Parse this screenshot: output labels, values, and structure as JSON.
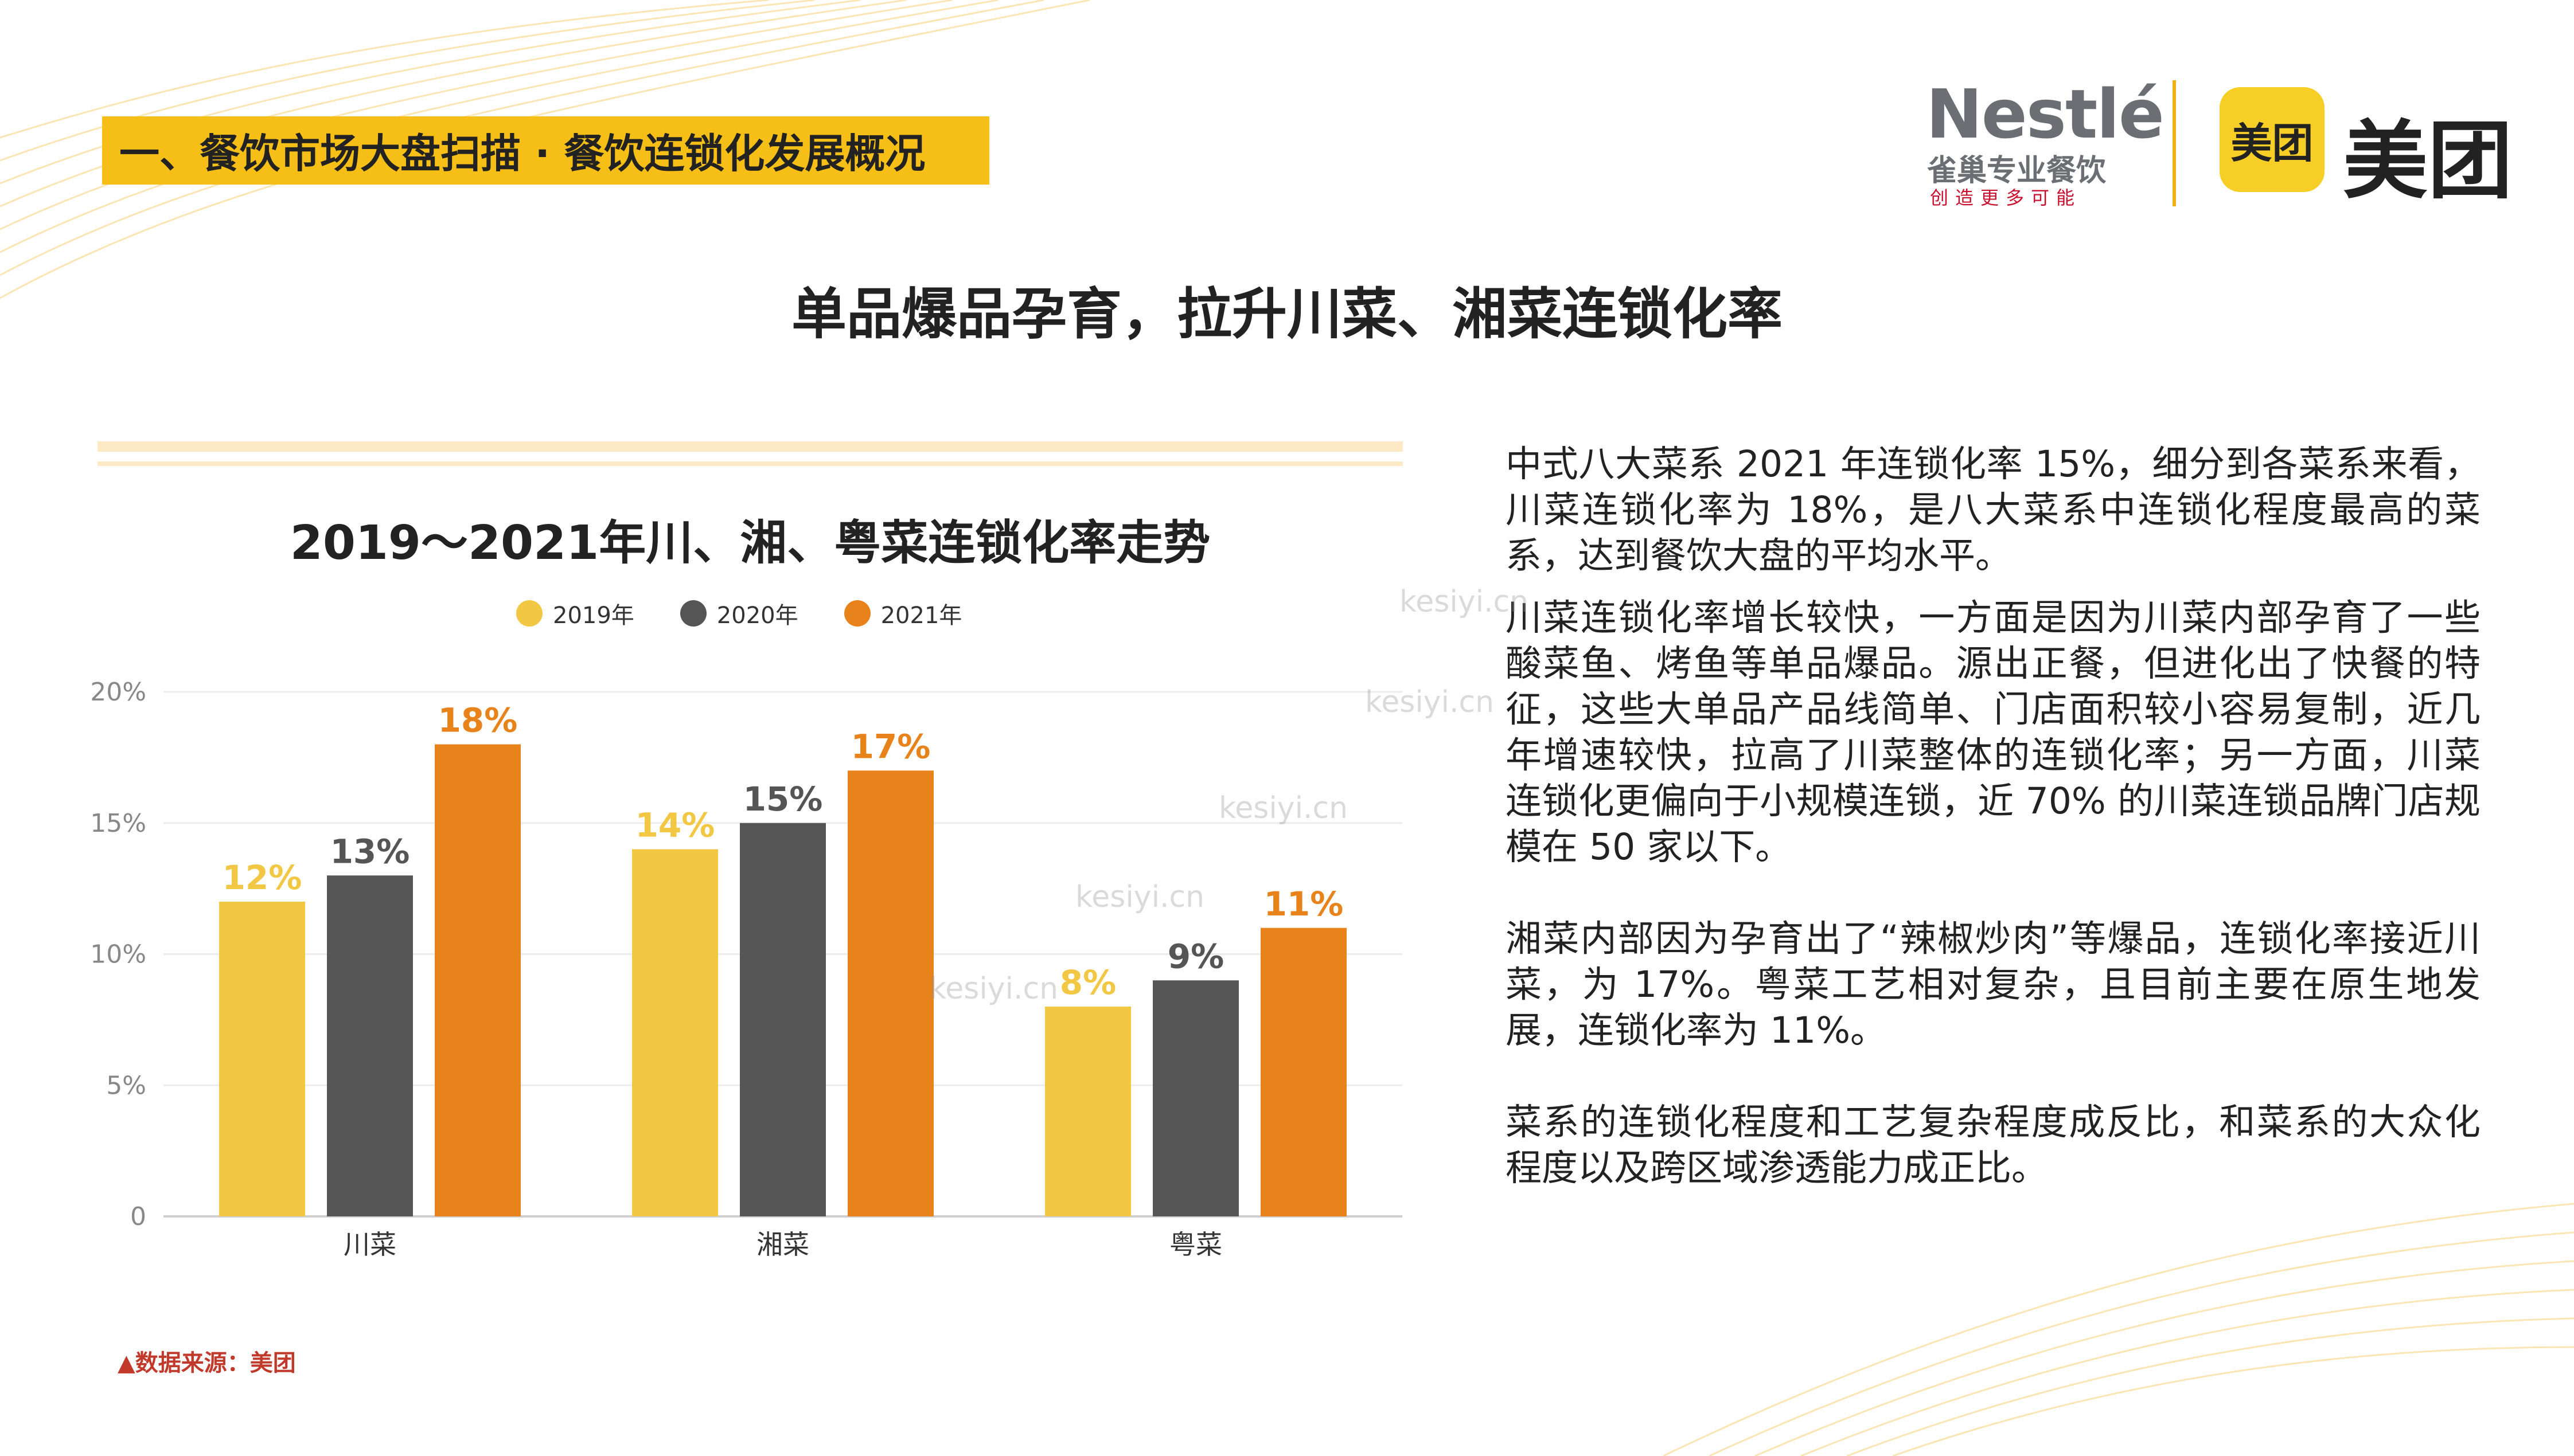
{
  "section_tag": "一、餐饮市场大盘扫描 · 餐饮连锁化发展概况",
  "logos": {
    "nestle_word": "Nestlé",
    "nestle_cn": "雀巢专业餐饮",
    "nestle_slogan": "创造更多可能",
    "meituan_badge": "美团",
    "meituan_word": "美团"
  },
  "headline": "单品爆品孕育，拉升川菜、湘菜连锁化率",
  "chart_data": {
    "type": "bar",
    "title": "2019～2021年川、湘、粤菜连锁化率走势",
    "categories": [
      "川菜",
      "湘菜",
      "粤菜"
    ],
    "series": [
      {
        "name": "2019年",
        "color": "#f2c744",
        "values": [
          12,
          14,
          8
        ],
        "labels": [
          "12%",
          "14%",
          "8%"
        ]
      },
      {
        "name": "2020年",
        "color": "#555555",
        "values": [
          13,
          15,
          9
        ],
        "labels": [
          "13%",
          "15%",
          "9%"
        ]
      },
      {
        "name": "2021年",
        "color": "#e8821a",
        "values": [
          18,
          17,
          11
        ],
        "labels": [
          "18%",
          "17%",
          "11%"
        ]
      }
    ],
    "label_colors": [
      "#f2c744",
      "#555555",
      "#e8821a"
    ],
    "y_ticks": [
      "0",
      "5%",
      "10%",
      "15%",
      "20%"
    ],
    "ylim": [
      0,
      20
    ],
    "grid": true,
    "legend_position": "top"
  },
  "body_paragraphs": [
    "中式八大菜系 2021 年连锁化率 15%，细分到各菜系来看，川菜连锁化率为 18%，是八大菜系中连锁化程度最高的菜系，达到餐饮大盘的平均水平。",
    "川菜连锁化率增长较快，一方面是因为川菜内部孕育了一些酸菜鱼、烤鱼等单品爆品。源出正餐，但进化出了快餐的特征，这些大单品产品线简单、门店面积较小容易复制，近几年增速较快，拉高了川菜整体的连锁化率；另一方面，川菜连锁化更偏向于小规模连锁，近 70% 的川菜连锁品牌门店规模在 50 家以下。",
    "湘菜内部因为孕育出了“辣椒炒肉”等爆品，连锁化率接近川菜，为 17%。粤菜工艺相对复杂，且目前主要在原生地发展，连锁化率为 11%。",
    "菜系的连锁化程度和工艺复杂程度成反比，和菜系的大众化程度以及跨区域渗透能力成正比。"
  ],
  "source": "▲数据来源：美团",
  "watermark": "kesiyi.cn"
}
